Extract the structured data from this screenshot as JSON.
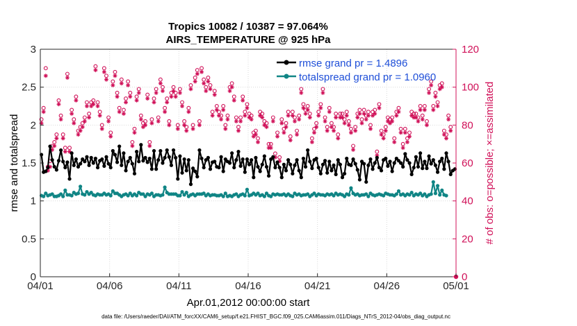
{
  "chart_data": {
    "type": "line",
    "title": "Tropics 10082 / 10387 = 97.064%",
    "subtitle": "AIRS_TEMPERATURE @ 925 hPa",
    "xlabel": "Apr.01,2012 00:00:00 start",
    "ylabel_left": "rmse and totalspread",
    "ylabel_right": "# of obs: o=possible; ×=assimilated",
    "footer": "data file: /Users/raeder/DAI/ATM_forcXX/CAM6_setup/f.e21.FHIST_BGC.f09_025.CAM6assim.011/Diags_NTrS_2012-04/obs_diag_output.nc",
    "x_ticks": [
      "04/01",
      "04/06",
      "04/11",
      "04/16",
      "04/21",
      "04/26",
      "05/01"
    ],
    "x_tick_days": [
      0,
      5,
      10,
      15,
      20,
      25,
      30
    ],
    "xlim_days": [
      0,
      30
    ],
    "ylim_left": [
      0,
      3
    ],
    "y_ticks_left": [
      "0",
      "0.5",
      "1",
      "1.5",
      "2",
      "2.5",
      "3"
    ],
    "ylim_right": [
      0,
      120
    ],
    "y_ticks_right": [
      "0",
      "20",
      "40",
      "60",
      "80",
      "100",
      "120"
    ],
    "colors": {
      "rmse": "#000000",
      "spread": "#108585",
      "obs": "#d01058",
      "legend_text": "#1f4fd8"
    },
    "series": [
      {
        "name": "rmse grand pr = 1.4896",
        "axis": "left",
        "values": [
          1.61,
          1.38,
          1.39,
          1.44,
          1.72,
          1.54,
          1.45,
          1.41,
          1.53,
          1.67,
          1.52,
          1.44,
          1.51,
          1.29,
          1.63,
          1.47,
          1.55,
          1.45,
          1.49,
          1.55,
          1.52,
          1.58,
          1.47,
          1.57,
          1.5,
          1.56,
          1.44,
          1.53,
          1.55,
          1.46,
          1.58,
          1.49,
          1.44,
          1.66,
          1.61,
          1.51,
          1.72,
          1.47,
          1.63,
          1.4,
          1.52,
          1.57,
          1.49,
          1.36,
          1.65,
          1.52,
          1.74,
          1.53,
          1.57,
          1.51,
          1.56,
          1.42,
          1.66,
          1.42,
          1.54,
          1.66,
          1.5,
          1.57,
          1.67,
          1.58,
          1.47,
          1.67,
          1.57,
          1.29,
          1.59,
          1.37,
          1.55,
          1.4,
          1.54,
          1.22,
          1.43,
          1.39,
          1.32,
          1.67,
          1.56,
          1.44,
          1.54,
          1.57,
          1.42,
          1.51,
          1.52,
          1.45,
          1.44,
          1.58,
          1.39,
          1.55,
          1.52,
          1.5,
          1.63,
          1.44,
          1.54,
          1.65,
          1.46,
          1.55,
          1.38,
          1.55,
          1.48,
          1.54,
          1.31,
          1.57,
          1.45,
          1.39,
          1.48,
          1.59,
          1.45,
          1.33,
          1.55,
          1.58,
          1.44,
          1.51,
          1.44,
          1.31,
          1.48,
          1.4,
          1.54,
          1.48,
          1.36,
          1.47,
          1.54,
          1.4,
          1.31,
          1.56,
          1.45,
          1.67,
          1.52,
          1.43,
          1.54,
          1.56,
          1.44,
          1.36,
          1.48,
          1.53,
          1.37,
          1.52,
          1.4,
          1.47,
          1.35,
          1.54,
          1.48,
          1.31,
          1.36,
          1.56,
          1.48,
          1.47,
          1.55,
          1.49,
          1.41,
          1.28,
          1.52,
          1.49,
          1.25,
          1.47,
          1.55,
          1.42,
          1.5,
          1.57,
          1.44,
          1.4,
          1.54,
          1.56,
          1.46,
          1.52,
          1.39,
          1.5,
          1.56,
          1.53,
          1.5,
          1.45,
          1.62,
          1.54,
          1.5,
          1.35,
          1.44,
          1.58,
          1.45,
          1.63,
          1.43,
          1.52,
          1.43,
          1.59,
          1.49,
          1.54,
          1.47,
          1.38,
          1.52,
          1.56,
          1.42,
          1.63,
          1.52,
          1.35,
          1.4,
          1.42
        ]
      },
      {
        "name": "totalspread grand pr = 1.0960",
        "axis": "left",
        "values": [
          1.07,
          1.06,
          1.1,
          1.07,
          1.08,
          1.09,
          1.06,
          1.06,
          1.07,
          1.09,
          1.06,
          1.14,
          1.08,
          1.08,
          1.07,
          1.11,
          1.09,
          1.1,
          1.19,
          1.09,
          1.08,
          1.12,
          1.09,
          1.11,
          1.08,
          1.07,
          1.09,
          1.08,
          1.08,
          1.1,
          1.08,
          1.09,
          1.07,
          1.13,
          1.1,
          1.1,
          1.08,
          1.06,
          1.08,
          1.09,
          1.07,
          1.1,
          1.07,
          1.09,
          1.07,
          1.11,
          1.09,
          1.09,
          1.06,
          1.09,
          1.08,
          1.1,
          1.06,
          1.08,
          1.08,
          1.07,
          1.08,
          1.18,
          1.11,
          1.09,
          1.09,
          1.09,
          1.09,
          1.07,
          1.07,
          1.12,
          1.08,
          1.11,
          1.06,
          1.08,
          1.09,
          1.07,
          1.09,
          1.09,
          1.09,
          1.1,
          1.07,
          1.09,
          1.07,
          1.08,
          1.08,
          1.07,
          1.07,
          1.08,
          1.06,
          1.1,
          1.06,
          1.07,
          1.06,
          1.08,
          1.09,
          1.06,
          1.08,
          1.09,
          1.07,
          1.15,
          1.07,
          1.08,
          1.1,
          1.08,
          1.1,
          1.07,
          1.08,
          1.06,
          1.1,
          1.07,
          1.06,
          1.09,
          1.08,
          1.09,
          1.08,
          1.08,
          1.09,
          1.07,
          1.09,
          1.07,
          1.06,
          1.1,
          1.08,
          1.09,
          1.07,
          1.08,
          1.08,
          1.09,
          1.06,
          1.08,
          1.1,
          1.07,
          1.09,
          1.08,
          1.08,
          1.07,
          1.09,
          1.08,
          1.09,
          1.07,
          1.1,
          1.08,
          1.09,
          1.08,
          1.06,
          1.09,
          1.08,
          1.17,
          1.1,
          1.08,
          1.09,
          1.07,
          1.08,
          1.08,
          1.09,
          1.06,
          1.1,
          1.08,
          1.07,
          1.08,
          1.09,
          1.08,
          1.07,
          1.1,
          1.09,
          1.08,
          1.08,
          1.07,
          1.09,
          1.13,
          1.08,
          1.09,
          1.07,
          1.09,
          1.08,
          1.11,
          1.07,
          1.09,
          1.08,
          1.1,
          1.07,
          1.09,
          1.06,
          1.08,
          1.09,
          1.25,
          1.1,
          1.2,
          1.08,
          1.14,
          1.08,
          1.07
        ]
      }
    ],
    "obs_possible": [
      83,
      89,
      110,
      58,
      61,
      69,
      71,
      75,
      93,
      85,
      75,
      68,
      107,
      68,
      88,
      83,
      95,
      77,
      79,
      81,
      84,
      92,
      86,
      92,
      93,
      111,
      92,
      87,
      80,
      110,
      106,
      84,
      76,
      103,
      108,
      97,
      89,
      104,
      88,
      94,
      103,
      97,
      71,
      78,
      95,
      99,
      85,
      81,
      82,
      96,
      71,
      83,
      94,
      99,
      84,
      104,
      100,
      89,
      94,
      82,
      97,
      100,
      97,
      80,
      99,
      92,
      82,
      79,
      89,
      101,
      80,
      105,
      109,
      82,
      110,
      104,
      100,
      105,
      101,
      87,
      98,
      90,
      87,
      85,
      90,
      80,
      85,
      100,
      102,
      95,
      84,
      79,
      84,
      95,
      87,
      91,
      86,
      85,
      76,
      77,
      73,
      87,
      86,
      82,
      81,
      70,
      70,
      84,
      65,
      76,
      63,
      83,
      78,
      81,
      87,
      74,
      87,
      84,
      77,
      85,
      99,
      91,
      88,
      90,
      86,
      73,
      78,
      81,
      87,
      91,
      99,
      84,
      79,
      89,
      81,
      79,
      86,
      75,
      86,
      86,
      83,
      87,
      82,
      78,
      69,
      79,
      86,
      88,
      83,
      88,
      85,
      87,
      80,
      87,
      88,
      66,
      91,
      77,
      75,
      79,
      84,
      83,
      84,
      73,
      87,
      89,
      78,
      70,
      78,
      73,
      76,
      87,
      86,
      86,
      84,
      90,
      85,
      90,
      82,
      99,
      103,
      90,
      97,
      92,
      101,
      102,
      77,
      75,
      85,
      79
    ],
    "obs_assimilated": [
      81,
      87,
      106,
      56,
      58,
      67,
      69,
      73,
      91,
      83,
      73,
      66,
      105,
      66,
      86,
      81,
      93,
      75,
      77,
      79,
      82,
      90,
      84,
      90,
      91,
      109,
      90,
      85,
      78,
      108,
      104,
      82,
      74,
      101,
      106,
      95,
      87,
      102,
      86,
      92,
      101,
      95,
      69,
      76,
      93,
      97,
      83,
      79,
      80,
      94,
      69,
      81,
      92,
      97,
      82,
      102,
      98,
      87,
      92,
      80,
      95,
      98,
      95,
      78,
      97,
      90,
      80,
      77,
      87,
      99,
      78,
      103,
      107,
      80,
      108,
      102,
      98,
      103,
      99,
      85,
      96,
      88,
      85,
      83,
      88,
      78,
      83,
      98,
      100,
      93,
      82,
      77,
      82,
      93,
      85,
      89,
      84,
      83,
      74,
      75,
      71,
      85,
      84,
      80,
      79,
      68,
      68,
      82,
      63,
      74,
      61,
      81,
      76,
      79,
      85,
      72,
      85,
      82,
      75,
      83,
      97,
      89,
      86,
      88,
      84,
      71,
      76,
      79,
      85,
      89,
      97,
      82,
      77,
      87,
      79,
      77,
      84,
      73,
      84,
      84,
      81,
      85,
      80,
      76,
      67,
      77,
      84,
      86,
      81,
      86,
      83,
      85,
      78,
      85,
      86,
      64,
      89,
      75,
      73,
      77,
      82,
      81,
      82,
      71,
      85,
      87,
      76,
      68,
      76,
      71,
      74,
      85,
      84,
      84,
      82,
      88,
      83,
      88,
      80,
      97,
      101,
      88,
      95,
      90,
      99,
      100,
      75,
      73,
      83,
      77
    ]
  }
}
